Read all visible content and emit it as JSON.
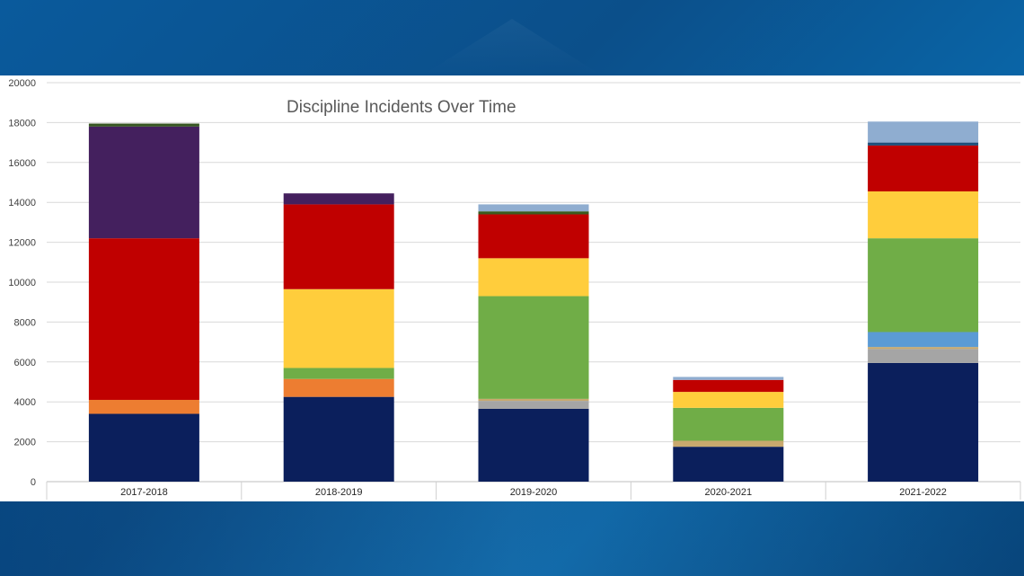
{
  "chart_data": {
    "type": "bar",
    "stacked": true,
    "title": "Discipline Incidents Over Time",
    "categories": [
      "2017-2018",
      "2018-2019",
      "2019-2020",
      "2020-2021",
      "2021-2022"
    ],
    "ylim": [
      0,
      20000
    ],
    "yticks": [
      0,
      2000,
      4000,
      6000,
      8000,
      10000,
      12000,
      14000,
      16000,
      18000,
      20000
    ],
    "grid": true,
    "series": [
      {
        "color": "#0b1f5c",
        "values": [
          3400,
          4250,
          3650,
          1750,
          5950
        ]
      },
      {
        "color": "#ed7d31",
        "values": [
          700,
          900,
          0,
          0,
          0
        ]
      },
      {
        "color": "#a5a5a5",
        "values": [
          0,
          0,
          400,
          0,
          700
        ]
      },
      {
        "color": "#c9a96e",
        "values": [
          0,
          0,
          100,
          300,
          100
        ]
      },
      {
        "color": "#5b9bd5",
        "values": [
          0,
          0,
          0,
          0,
          750
        ]
      },
      {
        "color": "#70ad47",
        "values": [
          0,
          550,
          5150,
          1650,
          4700
        ]
      },
      {
        "color": "#ffcd3c",
        "values": [
          0,
          3950,
          1900,
          800,
          2350
        ]
      },
      {
        "color": "#c00000",
        "values": [
          8100,
          4250,
          2200,
          600,
          2300
        ]
      },
      {
        "color": "#3a5a1e",
        "values": [
          0,
          0,
          150,
          0,
          0
        ]
      },
      {
        "color": "#1f4e79",
        "values": [
          0,
          0,
          0,
          0,
          150
        ]
      },
      {
        "color": "#44205e",
        "values": [
          5600,
          550,
          0,
          0,
          0
        ]
      },
      {
        "color": "#8fadd0",
        "values": [
          0,
          0,
          350,
          150,
          1050
        ]
      },
      {
        "color": "#375623",
        "values": [
          150,
          0,
          0,
          0,
          0
        ]
      }
    ]
  }
}
